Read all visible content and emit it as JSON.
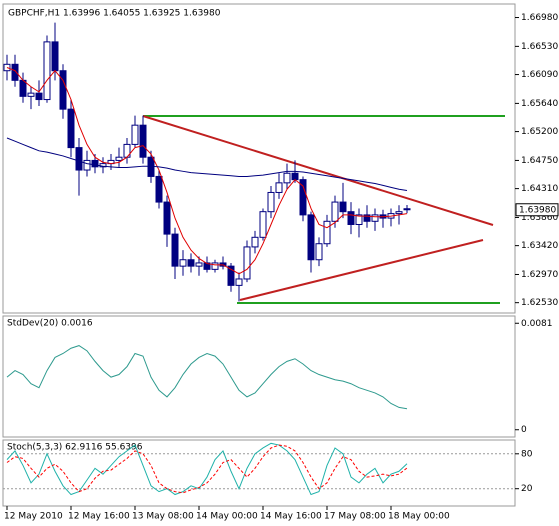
{
  "chart_data": [
    {
      "type": "candlestick",
      "title": "GBPCHF,H1  1.63996 1.64055 1.63925 1.63980",
      "color": "#000080",
      "last_label": "1.63980",
      "categories": [
        "12 May 2010",
        null,
        null,
        null,
        null,
        null,
        null,
        null,
        "12 May 16:00",
        null,
        null,
        null,
        null,
        null,
        null,
        null,
        "13 May 08:00",
        null,
        null,
        null,
        null,
        null,
        null,
        null,
        "14 May 00:00",
        null,
        null,
        null,
        null,
        null,
        null,
        null,
        "14 May 16:00",
        null,
        null,
        null,
        null,
        null,
        null,
        null,
        "17 May 08:00",
        null,
        null,
        null,
        null,
        null,
        null,
        null,
        "18 May 00:00",
        null,
        null
      ],
      "open": [
        1.6615,
        1.6625,
        1.66,
        1.6575,
        1.658,
        1.657,
        1.666,
        1.6615,
        1.6555,
        1.6495,
        1.646,
        1.6475,
        1.6465,
        1.647,
        1.6475,
        1.648,
        1.65,
        1.653,
        1.648,
        1.645,
        1.641,
        1.636,
        1.631,
        1.632,
        1.631,
        1.6315,
        1.6305,
        1.6315,
        1.631,
        1.628,
        1.629,
        1.634,
        1.6355,
        1.6395,
        1.6425,
        1.644,
        1.6455,
        1.6445,
        1.639,
        1.632,
        1.6345,
        1.638,
        1.641,
        1.6395,
        1.6375,
        1.639,
        1.638,
        1.639,
        1.6385,
        1.6392,
        1.63996
      ],
      "high": [
        1.664,
        1.664,
        1.6612,
        1.659,
        1.66,
        1.667,
        1.669,
        1.6625,
        1.657,
        1.651,
        1.649,
        1.6485,
        1.648,
        1.6485,
        1.6495,
        1.651,
        1.6545,
        1.6545,
        1.649,
        1.646,
        1.642,
        1.637,
        1.6335,
        1.633,
        1.6325,
        1.6325,
        1.632,
        1.6325,
        1.6315,
        1.63,
        1.635,
        1.6365,
        1.64,
        1.6435,
        1.6455,
        1.647,
        1.6475,
        1.645,
        1.6395,
        1.6355,
        1.639,
        1.642,
        1.644,
        1.641,
        1.64,
        1.6405,
        1.64,
        1.6398,
        1.64,
        1.6405,
        1.64055
      ],
      "low": [
        1.66,
        1.659,
        1.6565,
        1.6555,
        1.656,
        1.6565,
        1.66,
        1.654,
        1.648,
        1.642,
        1.645,
        1.6455,
        1.6455,
        1.646,
        1.6465,
        1.647,
        1.6495,
        1.647,
        1.644,
        1.64,
        1.634,
        1.629,
        1.6295,
        1.63,
        1.6295,
        1.63,
        1.63,
        1.6305,
        1.627,
        1.6255,
        1.6285,
        1.633,
        1.635,
        1.6385,
        1.6415,
        1.643,
        1.644,
        1.638,
        1.63,
        1.631,
        1.634,
        1.637,
        1.6385,
        1.636,
        1.6355,
        1.637,
        1.6365,
        1.637,
        1.6372,
        1.6375,
        1.63925
      ],
      "close": [
        1.6625,
        1.66,
        1.6575,
        1.658,
        1.657,
        1.666,
        1.6615,
        1.6555,
        1.6495,
        1.646,
        1.6475,
        1.6465,
        1.647,
        1.6475,
        1.648,
        1.65,
        1.653,
        1.648,
        1.645,
        1.641,
        1.636,
        1.631,
        1.632,
        1.631,
        1.6315,
        1.6305,
        1.6315,
        1.631,
        1.628,
        1.629,
        1.634,
        1.6355,
        1.6395,
        1.6425,
        1.644,
        1.6455,
        1.6445,
        1.639,
        1.632,
        1.6345,
        1.638,
        1.641,
        1.6395,
        1.6375,
        1.639,
        1.638,
        1.639,
        1.6385,
        1.6392,
        1.6395,
        1.6398
      ],
      "series": [
        {
          "color": "#e00000",
          "values": [
            1.662,
            1.6615,
            1.66,
            1.659,
            1.6582,
            1.66,
            1.6615,
            1.66,
            1.657,
            1.653,
            1.65,
            1.648,
            1.6472,
            1.647,
            1.6472,
            1.648,
            1.6495,
            1.6498,
            1.6485,
            1.646,
            1.6425,
            1.6385,
            1.6355,
            1.6335,
            1.6322,
            1.6314,
            1.6312,
            1.6312,
            1.6305,
            1.6298,
            1.6305,
            1.632,
            1.6345,
            1.6375,
            1.6405,
            1.643,
            1.6445,
            1.6435,
            1.64,
            1.6375,
            1.637,
            1.6378,
            1.639,
            1.639,
            1.6388,
            1.6388,
            1.6387,
            1.6387,
            1.6388,
            1.639,
            1.6392
          ]
        },
        {
          "color": "#00007f",
          "values": [
            1.651,
            1.6505,
            1.65,
            1.6495,
            1.649,
            1.6488,
            1.6485,
            1.6482,
            1.6478,
            1.6474,
            1.647,
            1.6468,
            1.6466,
            1.6465,
            1.6464,
            1.6464,
            1.6465,
            1.6466,
            1.6466,
            1.6465,
            1.6463,
            1.646,
            1.6458,
            1.6456,
            1.6455,
            1.6454,
            1.6453,
            1.6452,
            1.6451,
            1.645,
            1.645,
            1.6451,
            1.6452,
            1.6454,
            1.6456,
            1.6458,
            1.6458,
            1.6457,
            1.6455,
            1.6453,
            1.6451,
            1.6449,
            1.6447,
            1.6445,
            1.6443,
            1.6441,
            1.6439,
            1.6436,
            1.6433,
            1.643,
            1.6428
          ]
        }
      ],
      "ylim": [
        1.624,
        1.6716
      ],
      "yticks": [
        {
          "value": 1.6698,
          "label": "1.66980"
        },
        {
          "value": 1.6653,
          "label": "1.66530"
        },
        {
          "value": 1.6609,
          "label": "1.66090"
        },
        {
          "value": 1.6564,
          "label": "1.65640"
        },
        {
          "value": 1.652,
          "label": "1.65200"
        },
        {
          "value": 1.6475,
          "label": "1.64750"
        },
        {
          "value": 1.6431,
          "label": "1.64310"
        },
        {
          "value": 1.6386,
          "label": "1.63860"
        },
        {
          "value": 1.6342,
          "label": "1.63420"
        },
        {
          "value": 1.6297,
          "label": "1.62970"
        },
        {
          "value": 1.6253,
          "label": "1.62530"
        }
      ]
    },
    {
      "type": "line",
      "title": "StdDev(20) 0.0016",
      "series": [
        {
          "color": "#2e9a8e",
          "values": [
            0.004,
            0.0045,
            0.0042,
            0.0035,
            0.0032,
            0.0045,
            0.0055,
            0.0058,
            0.0062,
            0.0064,
            0.006,
            0.0052,
            0.0045,
            0.004,
            0.0042,
            0.0048,
            0.0058,
            0.0056,
            0.004,
            0.003,
            0.0025,
            0.0032,
            0.0042,
            0.005,
            0.0055,
            0.0058,
            0.0056,
            0.005,
            0.004,
            0.003,
            0.0025,
            0.0028,
            0.0035,
            0.0042,
            0.0048,
            0.0052,
            0.0054,
            0.005,
            0.0045,
            0.0042,
            0.004,
            0.0038,
            0.0037,
            0.0035,
            0.0032,
            0.003,
            0.0028,
            0.0025,
            0.002,
            0.0017,
            0.0016
          ]
        }
      ],
      "ylim": [
        -0.0004,
        0.0085
      ],
      "yticks": [
        0.0081,
        0
      ]
    },
    {
      "type": "line",
      "title": "Stoch(5,3,3) 62.9116 55.6396",
      "series": [
        {
          "color": "#20b2aa",
          "values": [
            70,
            85,
            60,
            30,
            45,
            80,
            50,
            25,
            10,
            15,
            35,
            55,
            45,
            60,
            75,
            85,
            95,
            60,
            25,
            15,
            20,
            10,
            15,
            25,
            20,
            40,
            70,
            85,
            50,
            20,
            55,
            80,
            90,
            98,
            95,
            85,
            70,
            40,
            10,
            15,
            60,
            90,
            80,
            40,
            30,
            45,
            55,
            30,
            45,
            50,
            62.9116
          ]
        },
        {
          "color": "#ff0000",
          "dashed": true,
          "values": [
            65,
            75,
            72,
            55,
            40,
            55,
            62,
            50,
            30,
            15,
            20,
            38,
            50,
            52,
            62,
            72,
            85,
            80,
            60,
            30,
            20,
            15,
            13,
            18,
            22,
            30,
            45,
            65,
            70,
            55,
            40,
            55,
            75,
            90,
            95,
            93,
            85,
            65,
            40,
            20,
            30,
            55,
            75,
            70,
            50,
            40,
            42,
            45,
            42,
            45,
            55.6396
          ]
        }
      ],
      "ylim": [
        -8,
        102
      ],
      "yticks": [
        80,
        20
      ]
    }
  ]
}
